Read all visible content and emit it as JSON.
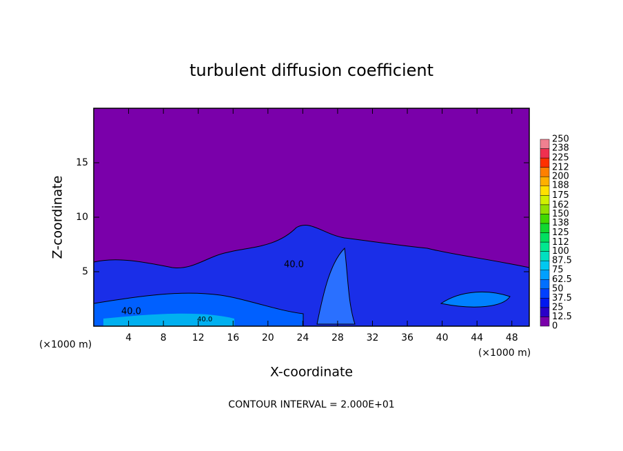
{
  "chart_data": {
    "type": "contour",
    "title": "turbulent diffusion coefficient",
    "x_label": "X-coordinate",
    "y_label": "Z-coordinate",
    "x_unit": "(×1000 m)",
    "x_unit_right": "(×1000 m)",
    "footnote": "CONTOUR INTERVAL = 2.000E+01",
    "contour_labels": [
      "40.0",
      "40.0",
      "40.0"
    ],
    "xlim": [
      0,
      50
    ],
    "xticks": [
      4,
      8,
      12,
      16,
      20,
      24,
      28,
      32,
      36,
      40,
      44,
      48
    ],
    "ylim": [
      0,
      20
    ],
    "yticks": [
      5,
      10,
      15
    ],
    "colorbar": {
      "levels": [
        0,
        12.5,
        25,
        37.5,
        50,
        62.5,
        75,
        87.5,
        100,
        112,
        125,
        138,
        150,
        162,
        175,
        188,
        200,
        212,
        225,
        238,
        250
      ],
      "colors": [
        "#7a00aa",
        "#2a00c8",
        "#0018f0",
        "#0040ff",
        "#0070ff",
        "#00a0ff",
        "#00c8f0",
        "#00e0c0",
        "#00e890",
        "#00e060",
        "#10d830",
        "#40d800",
        "#90e000",
        "#d0f000",
        "#ffe000",
        "#ffb000",
        "#ff8000",
        "#ff3000",
        "#f03050",
        "#f08090"
      ]
    }
  }
}
